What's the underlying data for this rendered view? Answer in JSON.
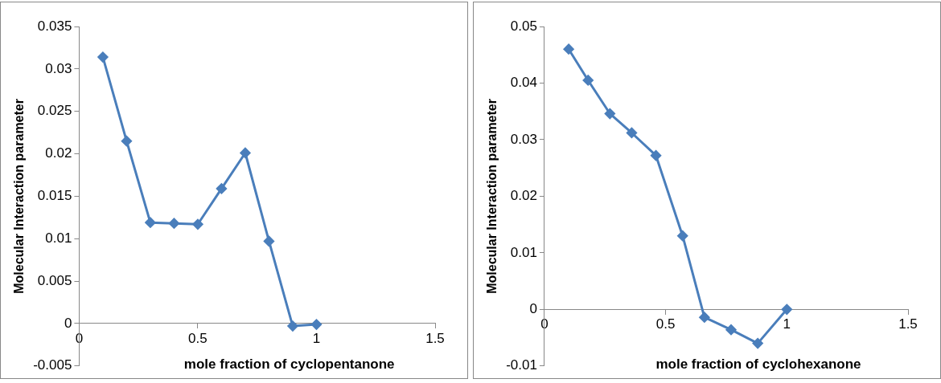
{
  "chart_data": [
    {
      "type": "line",
      "xlabel": "mole fraction of cyclopentanone",
      "ylabel": "Molecular Interaction parameter",
      "marker": "diamond",
      "line_style": "solid",
      "grid": false,
      "legend": false,
      "xlim": [
        0,
        1.5
      ],
      "xticks": [
        0,
        0.5,
        1,
        1.5
      ],
      "ylim": [
        -0.005,
        0.035
      ],
      "yticks": [
        -0.005,
        0,
        0.005,
        0.01,
        0.015,
        0.02,
        0.025,
        0.03,
        0.035
      ],
      "series": [
        {
          "color": "#4a7ebb",
          "x": [
            0.1,
            0.2,
            0.3,
            0.4,
            0.5,
            0.6,
            0.7,
            0.8,
            0.9,
            1.0
          ],
          "values": [
            0.0314,
            0.0215,
            0.0119,
            0.0118,
            0.0117,
            0.0159,
            0.0201,
            0.0097,
            -0.0003,
            -0.0001
          ]
        }
      ]
    },
    {
      "type": "line",
      "xlabel": "mole fraction of cyclohexanone",
      "ylabel": "Molecular Interaction parameter",
      "marker": "diamond",
      "line_style": "solid",
      "grid": false,
      "legend": false,
      "xlim": [
        0,
        1.5
      ],
      "xticks": [
        0,
        0.5,
        1,
        1.5
      ],
      "ylim": [
        -0.01,
        0.05
      ],
      "yticks": [
        -0.01,
        0,
        0.01,
        0.02,
        0.03,
        0.04,
        0.05
      ],
      "series": [
        {
          "color": "#4a7ebb",
          "x": [
            0.1,
            0.18,
            0.27,
            0.36,
            0.46,
            0.57,
            0.66,
            0.77,
            0.88,
            1.0
          ],
          "values": [
            0.046,
            0.0405,
            0.0346,
            0.0312,
            0.0272,
            0.013,
            -0.0014,
            -0.0036,
            -0.006,
            0
          ]
        }
      ]
    }
  ]
}
